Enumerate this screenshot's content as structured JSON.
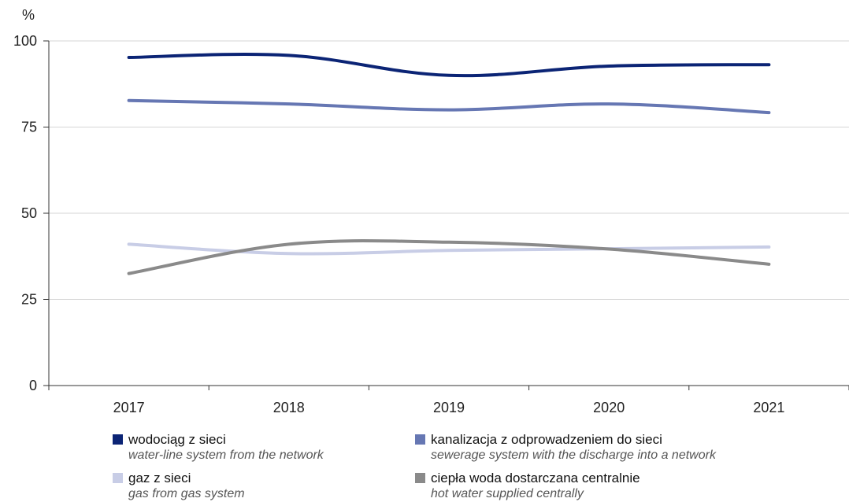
{
  "chart_data": {
    "type": "line",
    "unit_label": "%",
    "x": [
      "2017",
      "2018",
      "2019",
      "2020",
      "2021"
    ],
    "ylim": [
      0,
      100
    ],
    "yticks": [
      "0",
      "25",
      "50",
      "75",
      "100"
    ],
    "grid": true,
    "legend_position": "bottom",
    "series": [
      {
        "name": "wodociąg z sieci",
        "name_en": "water-line system from the network",
        "color": "#0b2475",
        "values": [
          95.2,
          95.8,
          90.0,
          92.7,
          93.1
        ]
      },
      {
        "name": "kanalizacja z odprowadzeniem do sieci",
        "name_en": "sewerage system with the discharge into a network",
        "color": "#6677b3",
        "values": [
          82.7,
          81.7,
          80.0,
          81.7,
          79.2
        ]
      },
      {
        "name": "gaz z sieci",
        "name_en": "gas from gas system",
        "color": "#c8cde6",
        "values": [
          41.0,
          38.3,
          39.2,
          39.7,
          40.2
        ]
      },
      {
        "name": "ciepła woda dostarczana centralnie",
        "name_en": "hot water supplied centrally",
        "color": "#8a8a8a",
        "values": [
          32.5,
          41.0,
          41.6,
          39.6,
          35.2
        ]
      }
    ]
  }
}
